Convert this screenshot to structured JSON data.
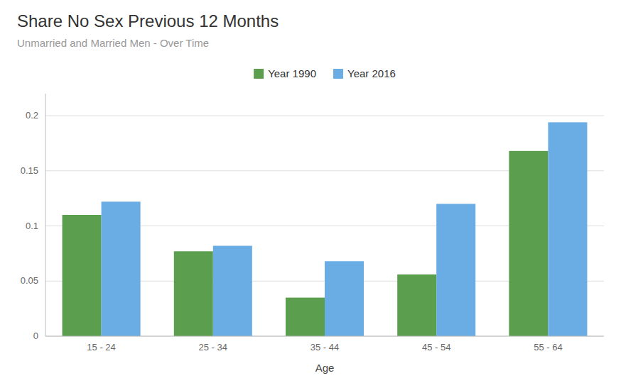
{
  "chart_data": {
    "type": "bar",
    "title": "Share No Sex Previous 12 Months",
    "subtitle": "Unmarried and Married Men - Over Time",
    "x_label": "Age",
    "categories": [
      "15 - 24",
      "25 - 34",
      "35 - 44",
      "45 - 54",
      "55 - 64"
    ],
    "series": [
      {
        "name": "Year 1990",
        "color": "#5a9e4e",
        "values": [
          0.11,
          0.077,
          0.035,
          0.056,
          0.168
        ]
      },
      {
        "name": "Year 2016",
        "color": "#6aace4",
        "values": [
          0.122,
          0.082,
          0.068,
          0.12,
          0.194
        ]
      }
    ],
    "ylim": [
      0,
      0.22
    ],
    "yticks": [
      0,
      0.05,
      0.1,
      0.15,
      0.2
    ],
    "grid": true,
    "legend": "top"
  }
}
